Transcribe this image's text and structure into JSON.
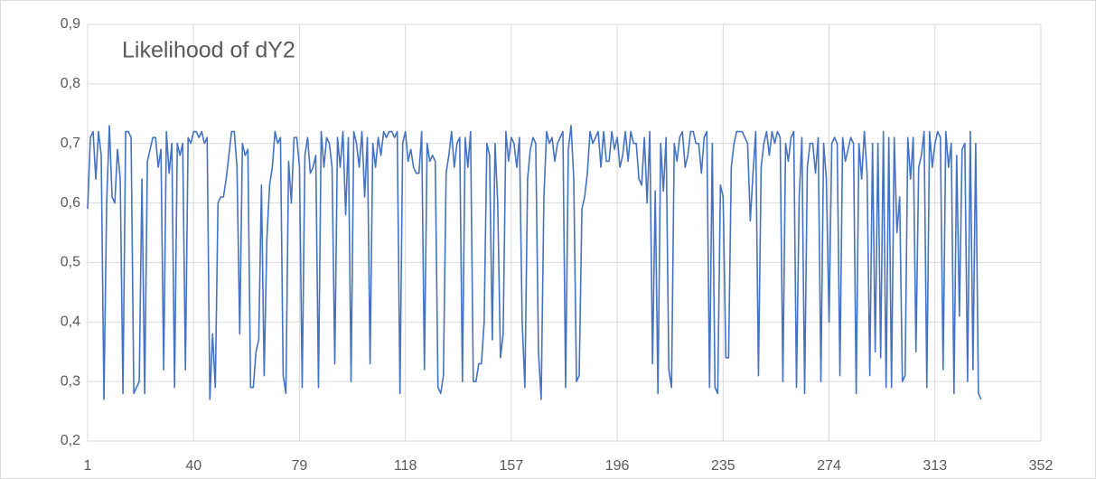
{
  "chart_data": {
    "type": "line",
    "title": "Likelihood of dY2",
    "color": "#4472c4",
    "grid": true,
    "xlim": [
      1,
      352
    ],
    "xticks": [
      1,
      40,
      79,
      118,
      157,
      196,
      235,
      274,
      313,
      352
    ],
    "ylim": [
      0.2,
      0.9
    ],
    "yticks": [
      {
        "value": 0.2,
        "label": "0,2"
      },
      {
        "value": 0.3,
        "label": "0,3"
      },
      {
        "value": 0.4,
        "label": "0,4"
      },
      {
        "value": 0.5,
        "label": "0,5"
      },
      {
        "value": 0.6,
        "label": "0,6"
      },
      {
        "value": 0.7,
        "label": "0,7"
      },
      {
        "value": 0.8,
        "label": "0,8"
      },
      {
        "value": 0.9,
        "label": "0,9"
      }
    ],
    "x": [
      1,
      2,
      3,
      4,
      5,
      6,
      7,
      8,
      9,
      10,
      11,
      12,
      13,
      14,
      15,
      16,
      17,
      18,
      19,
      20,
      21,
      22,
      23,
      24,
      25,
      26,
      27,
      28,
      29,
      30,
      31,
      32,
      33,
      34,
      35,
      36,
      37,
      38,
      39,
      40,
      41,
      42,
      43,
      44,
      45,
      46,
      47,
      48,
      49,
      50,
      51,
      52,
      53,
      54,
      55,
      56,
      57,
      58,
      59,
      60,
      61,
      62,
      63,
      64,
      65,
      66,
      67,
      68,
      69,
      70,
      71,
      72,
      73,
      74,
      75,
      76,
      77,
      78,
      79,
      80,
      81,
      82,
      83,
      84,
      85,
      86,
      87,
      88,
      89,
      90,
      91,
      92,
      93,
      94,
      95,
      96,
      97,
      98,
      99,
      100,
      101,
      102,
      103,
      104,
      105,
      106,
      107,
      108,
      109,
      110,
      111,
      112,
      113,
      114,
      115,
      116,
      117,
      118,
      119,
      120,
      121,
      122,
      123,
      124,
      125,
      126,
      127,
      128,
      129,
      130,
      131,
      132,
      133,
      134,
      135,
      136,
      137,
      138,
      139,
      140,
      141,
      142,
      143,
      144,
      145,
      146,
      147,
      148,
      149,
      150,
      151,
      152,
      153,
      154,
      155,
      156,
      157,
      158,
      159,
      160,
      161,
      162,
      163,
      164,
      165,
      166,
      167,
      168,
      169,
      170,
      171,
      172,
      173,
      174,
      175,
      176,
      177,
      178,
      179,
      180,
      181,
      182,
      183,
      184,
      185,
      186,
      187,
      188,
      189,
      190,
      191,
      192,
      193,
      194,
      195,
      196,
      197,
      198,
      199,
      200,
      201,
      202,
      203,
      204,
      205,
      206,
      207,
      208,
      209,
      210,
      211,
      212,
      213,
      214,
      215,
      216,
      217,
      218,
      219,
      220,
      221,
      222,
      223,
      224,
      225,
      226,
      227,
      228,
      229,
      230,
      231,
      232,
      233,
      234,
      235,
      236,
      237,
      238,
      239,
      240,
      241,
      242,
      243,
      244,
      245,
      246,
      247,
      248,
      249,
      250,
      251,
      252,
      253,
      254,
      255,
      256,
      257,
      258,
      259,
      260,
      261,
      262,
      263,
      264,
      265,
      266,
      267,
      268,
      269,
      270,
      271,
      272,
      273,
      274,
      275,
      276,
      277,
      278,
      279,
      280,
      281,
      282,
      283,
      284,
      285,
      286,
      287,
      288,
      289,
      290,
      291,
      292,
      293,
      294,
      295,
      296,
      297,
      298,
      299,
      300,
      301,
      302,
      303,
      304,
      305,
      306,
      307,
      308,
      309,
      310,
      311,
      312,
      313,
      314,
      315,
      316,
      317,
      318,
      319,
      320,
      321,
      322,
      323,
      324,
      325,
      326,
      327,
      328,
      329,
      330
    ],
    "values": [
      0.59,
      0.71,
      0.72,
      0.64,
      0.72,
      0.68,
      0.27,
      0.6,
      0.73,
      0.61,
      0.6,
      0.69,
      0.64,
      0.28,
      0.72,
      0.72,
      0.71,
      0.28,
      0.29,
      0.3,
      0.64,
      0.28,
      0.67,
      0.69,
      0.71,
      0.71,
      0.66,
      0.69,
      0.32,
      0.72,
      0.65,
      0.7,
      0.29,
      0.7,
      0.68,
      0.7,
      0.32,
      0.71,
      0.7,
      0.72,
      0.72,
      0.71,
      0.72,
      0.7,
      0.71,
      0.27,
      0.38,
      0.29,
      0.6,
      0.61,
      0.61,
      0.64,
      0.68,
      0.72,
      0.72,
      0.66,
      0.38,
      0.7,
      0.68,
      0.69,
      0.29,
      0.29,
      0.35,
      0.37,
      0.63,
      0.31,
      0.54,
      0.63,
      0.66,
      0.72,
      0.7,
      0.71,
      0.31,
      0.28,
      0.67,
      0.6,
      0.71,
      0.71,
      0.66,
      0.29,
      0.68,
      0.71,
      0.65,
      0.66,
      0.68,
      0.29,
      0.72,
      0.66,
      0.71,
      0.7,
      0.66,
      0.33,
      0.71,
      0.66,
      0.72,
      0.58,
      0.71,
      0.3,
      0.72,
      0.7,
      0.66,
      0.72,
      0.61,
      0.71,
      0.33,
      0.7,
      0.66,
      0.71,
      0.68,
      0.72,
      0.71,
      0.72,
      0.72,
      0.71,
      0.72,
      0.28,
      0.7,
      0.72,
      0.67,
      0.69,
      0.66,
      0.65,
      0.65,
      0.72,
      0.32,
      0.7,
      0.67,
      0.68,
      0.67,
      0.29,
      0.28,
      0.31,
      0.65,
      0.68,
      0.72,
      0.66,
      0.7,
      0.71,
      0.3,
      0.71,
      0.66,
      0.72,
      0.3,
      0.3,
      0.33,
      0.33,
      0.4,
      0.7,
      0.68,
      0.37,
      0.7,
      0.6,
      0.34,
      0.38,
      0.72,
      0.67,
      0.71,
      0.7,
      0.66,
      0.71,
      0.4,
      0.29,
      0.64,
      0.69,
      0.71,
      0.7,
      0.35,
      0.27,
      0.61,
      0.72,
      0.7,
      0.71,
      0.67,
      0.7,
      0.71,
      0.72,
      0.29,
      0.69,
      0.73,
      0.64,
      0.3,
      0.31,
      0.59,
      0.61,
      0.65,
      0.72,
      0.7,
      0.71,
      0.72,
      0.66,
      0.72,
      0.67,
      0.67,
      0.72,
      0.69,
      0.71,
      0.66,
      0.68,
      0.72,
      0.67,
      0.72,
      0.7,
      0.7,
      0.64,
      0.63,
      0.71,
      0.6,
      0.72,
      0.33,
      0.62,
      0.28,
      0.7,
      0.62,
      0.71,
      0.32,
      0.29,
      0.7,
      0.67,
      0.71,
      0.72,
      0.66,
      0.68,
      0.72,
      0.72,
      0.7,
      0.7,
      0.65,
      0.71,
      0.72,
      0.29,
      0.7,
      0.29,
      0.28,
      0.63,
      0.61,
      0.34,
      0.34,
      0.66,
      0.7,
      0.72,
      0.72,
      0.72,
      0.71,
      0.7,
      0.57,
      0.65,
      0.72,
      0.31,
      0.66,
      0.7,
      0.72,
      0.68,
      0.72,
      0.7,
      0.72,
      0.71,
      0.3,
      0.7,
      0.67,
      0.71,
      0.72,
      0.29,
      0.61,
      0.71,
      0.28,
      0.66,
      0.7,
      0.7,
      0.65,
      0.71,
      0.3,
      0.7,
      0.64,
      0.4,
      0.7,
      0.71,
      0.7,
      0.31,
      0.71,
      0.67,
      0.69,
      0.71,
      0.7,
      0.28,
      0.7,
      0.64,
      0.72,
      0.65,
      0.31,
      0.7,
      0.35,
      0.7,
      0.34,
      0.72,
      0.29,
      0.71,
      0.29,
      0.71,
      0.55,
      0.61,
      0.3,
      0.31,
      0.71,
      0.64,
      0.71,
      0.35,
      0.66,
      0.68,
      0.72,
      0.29,
      0.72,
      0.66,
      0.7,
      0.72,
      0.71,
      0.32,
      0.72,
      0.66,
      0.7,
      0.28,
      0.68,
      0.41,
      0.69,
      0.7,
      0.3,
      0.72,
      0.32,
      0.7,
      0.28,
      0.27
    ]
  }
}
